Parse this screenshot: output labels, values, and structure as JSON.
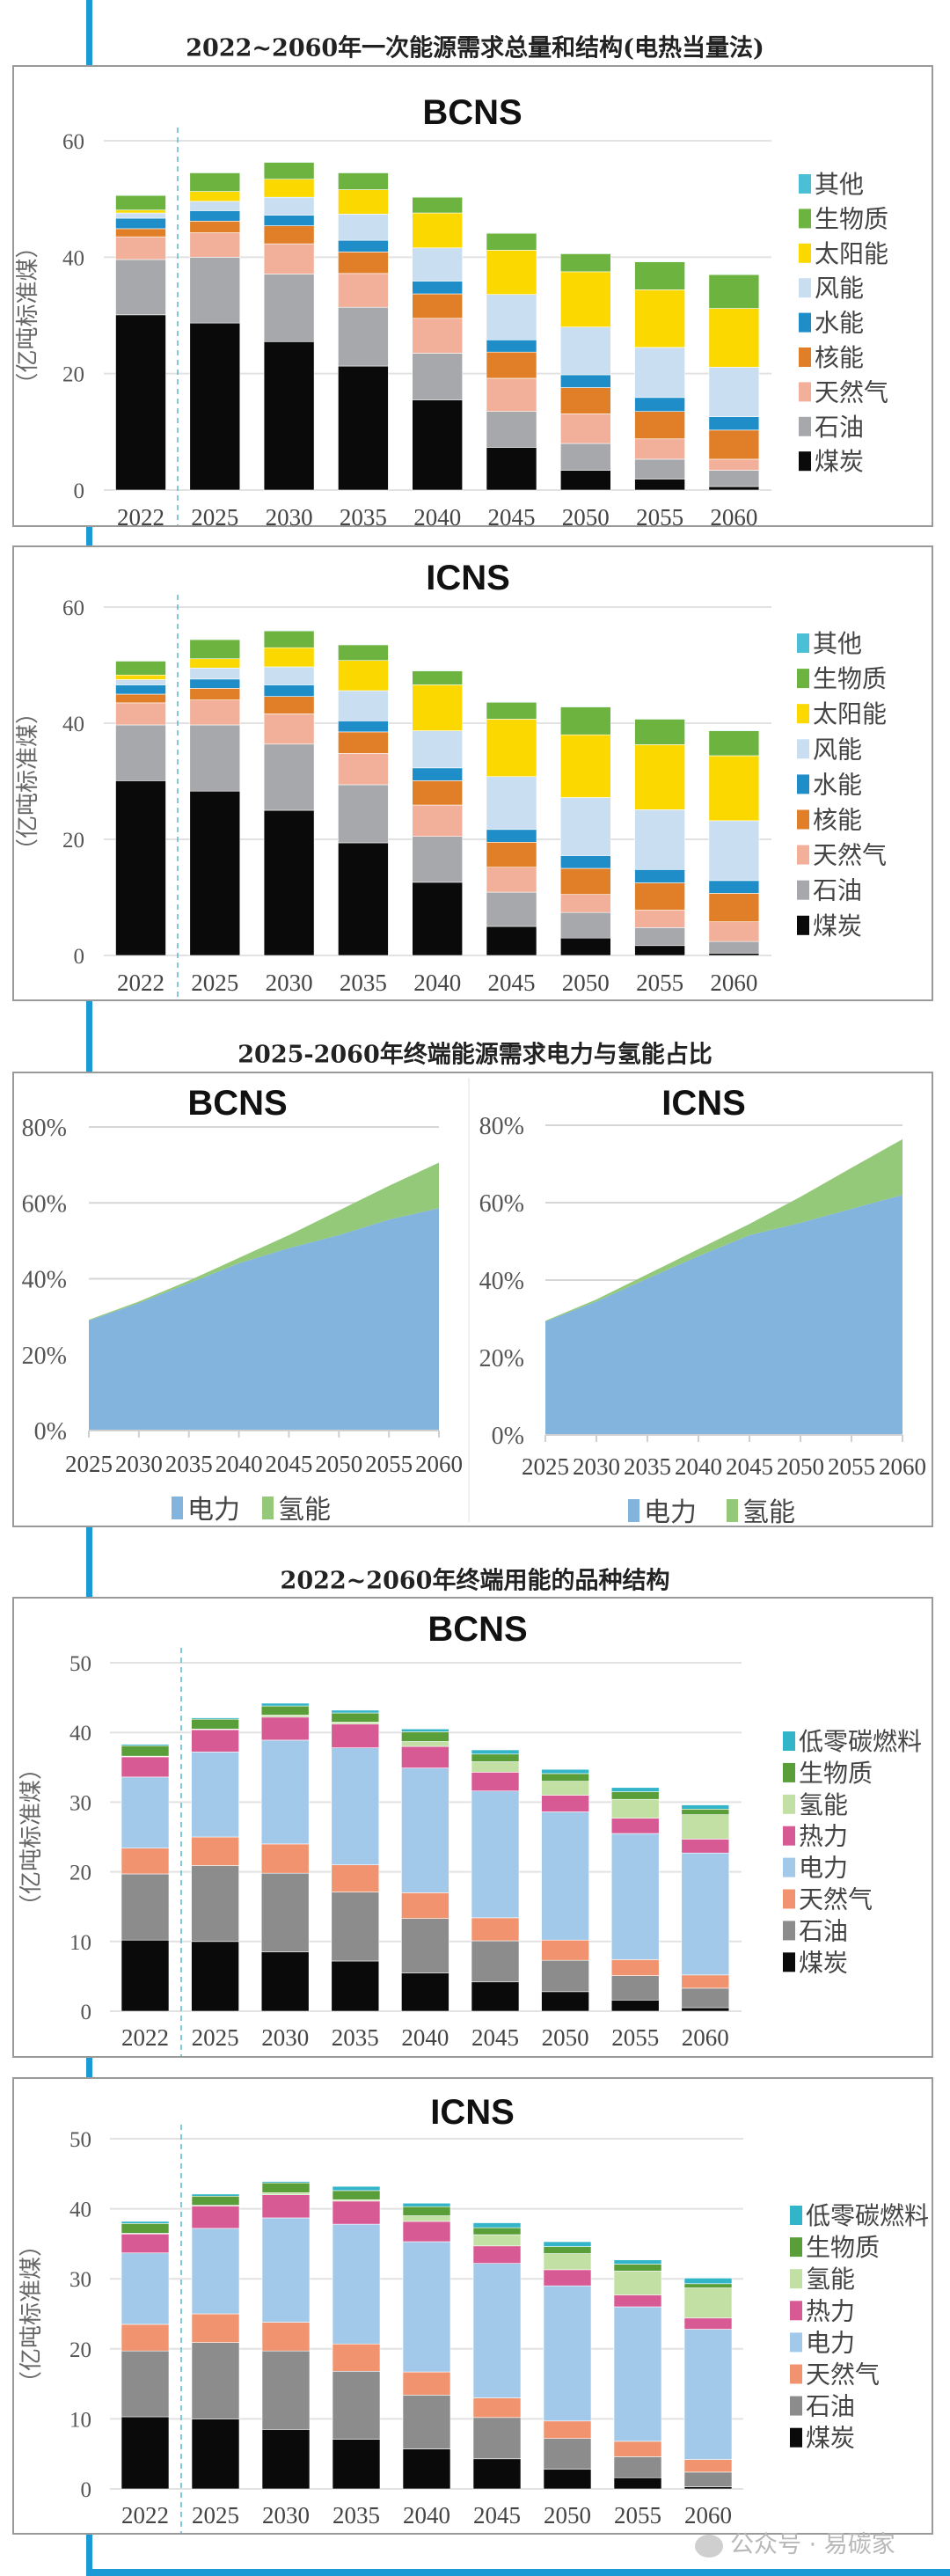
{
  "sections": [
    {
      "title": "2022~2060年一次能源需求总量和结构(电热当量法)"
    },
    {
      "title": "2025-2060年终端能源需求电力与氢能占比"
    },
    {
      "title": "2022~2060年终端用能的品种结构"
    }
  ],
  "watermark": "公众号 · 易碳家",
  "accent_color": "#1b9ad6",
  "chart_data": [
    {
      "type": "bar",
      "stacked": true,
      "title": "BCNS",
      "ylabel": "（亿吨标准煤）",
      "ylim": [
        0,
        60
      ],
      "yticks": [
        "0",
        "20",
        "40",
        "60"
      ],
      "grid": true,
      "legend": "right",
      "categories": [
        "2022",
        "2025",
        "2030",
        "2035",
        "2040",
        "2045",
        "2050",
        "2055",
        "2060"
      ],
      "series": [
        {
          "name": "煤炭",
          "color": "#0a0a0a",
          "values": [
            30.1,
            28.7,
            25.5,
            21.3,
            15.5,
            7.3,
            3.4,
            1.9,
            0.6
          ]
        },
        {
          "name": "石油",
          "color": "#a6a8ab",
          "values": [
            9.5,
            11.3,
            11.6,
            10.1,
            8.0,
            6.2,
            4.6,
            3.4,
            2.8
          ]
        },
        {
          "name": "天然气",
          "color": "#f2b09a",
          "values": [
            3.9,
            4.2,
            5.2,
            5.8,
            6.0,
            5.7,
            5.1,
            3.5,
            1.9
          ]
        },
        {
          "name": "核能",
          "color": "#e07f27",
          "values": [
            1.4,
            2.0,
            3.1,
            3.7,
            4.2,
            4.5,
            4.5,
            4.7,
            5.0
          ]
        },
        {
          "name": "水能",
          "color": "#1f8dc8",
          "values": [
            1.8,
            1.8,
            1.8,
            2.0,
            2.2,
            2.1,
            2.2,
            2.4,
            2.3
          ]
        },
        {
          "name": "风能",
          "color": "#c9dff1",
          "values": [
            0.9,
            1.6,
            3.1,
            4.5,
            5.7,
            7.8,
            8.2,
            8.6,
            8.5
          ]
        },
        {
          "name": "太阳能",
          "color": "#fbd900",
          "values": [
            0.5,
            1.7,
            3.1,
            4.2,
            6.0,
            7.6,
            9.5,
            9.9,
            10.1
          ]
        },
        {
          "name": "生物质",
          "color": "#6db33f",
          "values": [
            2.5,
            3.2,
            2.9,
            2.9,
            2.7,
            2.9,
            3.1,
            4.8,
            5.8
          ]
        },
        {
          "name": "其他",
          "color": "#4bbfd6",
          "values": [
            0.1,
            0.1,
            0.1,
            0.1,
            0.1,
            0.1,
            0.1,
            0.1,
            0.1
          ]
        }
      ]
    },
    {
      "type": "bar",
      "stacked": true,
      "title": "ICNS",
      "ylabel": "（亿吨标准煤）",
      "ylim": [
        0,
        60
      ],
      "yticks": [
        "0",
        "20",
        "40",
        "60"
      ],
      "grid": true,
      "legend": "right",
      "categories": [
        "2022",
        "2025",
        "2030",
        "2035",
        "2040",
        "2045",
        "2050",
        "2055",
        "2060"
      ],
      "series": [
        {
          "name": "煤炭",
          "color": "#0a0a0a",
          "values": [
            30.1,
            28.3,
            25.0,
            19.4,
            12.6,
            5.0,
            3.0,
            1.7,
            0.4
          ]
        },
        {
          "name": "石油",
          "color": "#a6a8ab",
          "values": [
            9.6,
            11.4,
            11.4,
            10.0,
            7.9,
            5.9,
            4.4,
            3.1,
            2.0
          ]
        },
        {
          "name": "天然气",
          "color": "#f2b09a",
          "values": [
            3.8,
            4.3,
            5.2,
            5.4,
            5.4,
            4.3,
            3.1,
            3.0,
            3.4
          ]
        },
        {
          "name": "核能",
          "color": "#e07f27",
          "values": [
            1.5,
            2.0,
            3.0,
            3.7,
            4.2,
            4.3,
            4.5,
            4.7,
            4.9
          ]
        },
        {
          "name": "水能",
          "color": "#1f8dc8",
          "values": [
            1.6,
            1.6,
            2.0,
            1.9,
            2.2,
            2.2,
            2.2,
            2.3,
            2.2
          ]
        },
        {
          "name": "风能",
          "color": "#c9dff1",
          "values": [
            0.9,
            1.9,
            3.1,
            5.2,
            6.4,
            9.1,
            10.0,
            10.3,
            10.3
          ]
        },
        {
          "name": "太阳能",
          "color": "#fbd900",
          "values": [
            0.8,
            1.6,
            3.3,
            5.2,
            7.9,
            9.9,
            10.8,
            11.2,
            11.2
          ]
        },
        {
          "name": "生物质",
          "color": "#6db33f",
          "values": [
            2.4,
            3.3,
            2.9,
            2.7,
            2.4,
            2.9,
            4.8,
            4.4,
            4.3
          ]
        },
        {
          "name": "其他",
          "color": "#4bbfd6",
          "values": [
            0.1,
            0.1,
            0.1,
            0.1,
            0.1,
            0.1,
            0.1,
            0.1,
            0.1
          ]
        }
      ]
    },
    {
      "type": "area",
      "stacked": true,
      "title": "BCNS",
      "ylim": [
        0,
        80
      ],
      "yticks": [
        "0%",
        "20%",
        "40%",
        "60%",
        "80%"
      ],
      "grid": true,
      "legend": "bottom",
      "categories": [
        "2025",
        "2030",
        "2035",
        "2040",
        "2045",
        "2050",
        "2055",
        "2060"
      ],
      "series": [
        {
          "name": "电力",
          "color": "#82b4de",
          "values": [
            29.0,
            33.6,
            38.8,
            44.1,
            48.1,
            51.5,
            55.6,
            58.6
          ]
        },
        {
          "name": "氢能",
          "color": "#94c97a",
          "values": [
            0.2,
            0.4,
            0.7,
            1.4,
            3.4,
            6.5,
            8.9,
            12.0
          ]
        }
      ]
    },
    {
      "type": "area",
      "stacked": true,
      "title": "ICNS",
      "ylim": [
        0,
        80
      ],
      "yticks": [
        "0%",
        "20%",
        "40%",
        "60%",
        "80%"
      ],
      "grid": true,
      "legend": "bottom",
      "categories": [
        "2025",
        "2030",
        "2035",
        "2040",
        "2045",
        "2050",
        "2055",
        "2060"
      ],
      "series": [
        {
          "name": "电力",
          "color": "#82b4de",
          "values": [
            29.3,
            34.5,
            40.4,
            46.2,
            51.6,
            54.8,
            58.4,
            62.0
          ]
        },
        {
          "name": "氢能",
          "color": "#94c97a",
          "values": [
            0.2,
            0.5,
            1.1,
            1.8,
            2.9,
            6.7,
            10.6,
            14.4
          ]
        }
      ]
    },
    {
      "type": "bar",
      "stacked": true,
      "title": "BCNS",
      "ylabel": "（亿吨标准煤）",
      "ylim": [
        0,
        50
      ],
      "yticks": [
        "0",
        "10",
        "20",
        "30",
        "40",
        "50"
      ],
      "grid": true,
      "legend": "right",
      "categories": [
        "2022",
        "2025",
        "2030",
        "2035",
        "2040",
        "2045",
        "2050",
        "2055",
        "2060"
      ],
      "series": [
        {
          "name": "煤炭",
          "color": "#0a0a0a",
          "values": [
            10.2,
            10.0,
            8.5,
            7.2,
            5.5,
            4.2,
            2.8,
            1.6,
            0.5
          ]
        },
        {
          "name": "石油",
          "color": "#8c8c8c",
          "values": [
            9.5,
            10.9,
            11.3,
            9.9,
            7.8,
            5.9,
            4.5,
            3.5,
            2.8
          ]
        },
        {
          "name": "天然气",
          "color": "#f0936e",
          "values": [
            3.7,
            4.1,
            4.2,
            3.9,
            3.7,
            3.3,
            2.9,
            2.3,
            1.9
          ]
        },
        {
          "name": "电力",
          "color": "#a3c9ea",
          "values": [
            10.2,
            12.2,
            14.9,
            16.8,
            17.9,
            18.2,
            18.4,
            18.1,
            17.5
          ]
        },
        {
          "name": "热力",
          "color": "#d85a95",
          "values": [
            2.9,
            3.2,
            3.3,
            3.4,
            3.1,
            2.7,
            2.4,
            2.2,
            2.0
          ]
        },
        {
          "name": "氢能",
          "color": "#c2e0a4",
          "values": [
            0.1,
            0.1,
            0.3,
            0.3,
            0.7,
            1.5,
            2.0,
            2.7,
            3.5
          ]
        },
        {
          "name": "生物质",
          "color": "#5a9e3a",
          "values": [
            1.5,
            1.4,
            1.3,
            1.3,
            1.4,
            1.1,
            1.1,
            1.1,
            0.8
          ]
        },
        {
          "name": "低零碳燃料",
          "color": "#33b5c9",
          "values": [
            0.2,
            0.2,
            0.4,
            0.4,
            0.4,
            0.6,
            0.6,
            0.6,
            0.6
          ]
        }
      ]
    },
    {
      "type": "bar",
      "stacked": true,
      "title": "ICNS",
      "ylabel": "（亿吨标准煤）",
      "ylim": [
        0,
        50
      ],
      "yticks": [
        "0",
        "10",
        "20",
        "30",
        "40",
        "50"
      ],
      "grid": true,
      "legend": "right",
      "categories": [
        "2022",
        "2025",
        "2030",
        "2035",
        "2040",
        "2045",
        "2050",
        "2055",
        "2060"
      ],
      "series": [
        {
          "name": "煤炭",
          "color": "#0a0a0a",
          "values": [
            10.3,
            10.0,
            8.5,
            7.1,
            5.7,
            4.3,
            2.8,
            1.6,
            0.3
          ]
        },
        {
          "name": "石油",
          "color": "#8c8c8c",
          "values": [
            9.4,
            10.9,
            11.2,
            9.7,
            7.7,
            5.9,
            4.4,
            3.0,
            2.1
          ]
        },
        {
          "name": "天然气",
          "color": "#f0936e",
          "values": [
            3.8,
            4.1,
            4.1,
            3.9,
            3.3,
            2.8,
            2.5,
            2.2,
            1.8
          ]
        },
        {
          "name": "电力",
          "color": "#a3c9ea",
          "values": [
            10.2,
            12.2,
            14.9,
            17.1,
            18.6,
            19.2,
            19.3,
            19.2,
            18.6
          ]
        },
        {
          "name": "热力",
          "color": "#d85a95",
          "values": [
            2.7,
            3.2,
            3.3,
            3.3,
            2.9,
            2.5,
            2.3,
            1.7,
            1.6
          ]
        },
        {
          "name": "氢能",
          "color": "#c2e0a4",
          "values": [
            0.1,
            0.1,
            0.3,
            0.2,
            0.8,
            1.6,
            2.3,
            3.4,
            4.3
          ]
        },
        {
          "name": "生物质",
          "color": "#5a9e3a",
          "values": [
            1.4,
            1.3,
            1.4,
            1.3,
            1.3,
            1.0,
            1.0,
            1.0,
            0.6
          ]
        },
        {
          "name": "低零碳燃料",
          "color": "#33b5c9",
          "values": [
            0.3,
            0.3,
            0.2,
            0.6,
            0.5,
            0.7,
            0.7,
            0.6,
            0.8
          ]
        }
      ]
    }
  ]
}
